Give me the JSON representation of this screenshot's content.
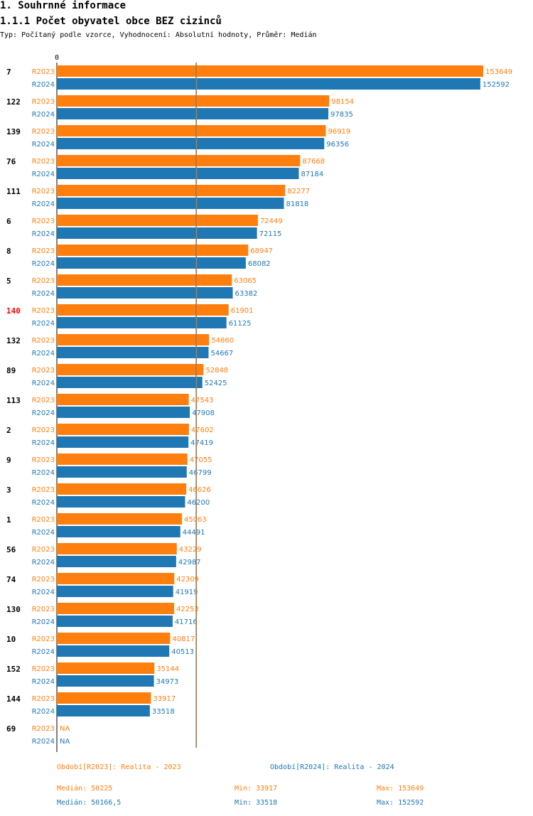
{
  "header": {
    "section_title": "1. Souhrnné informace",
    "chart_title": "1.1.1 Počet obyvatel obce BEZ cizinců",
    "subtitle": "Typ: Počítaný podle vzorce, Vyhodnocení: Absolutní hodnoty, Průměr: Medián"
  },
  "colors": {
    "R2023": "#ff7f0e",
    "R2024": "#1f77b4",
    "highlight": "#ff0000",
    "median_line": "#5a7a7a"
  },
  "chart_data": {
    "type": "bar",
    "orientation": "horizontal",
    "axis_zero_label": "0",
    "x_min": 0,
    "x_max": 153649,
    "categories": [
      "7",
      "122",
      "139",
      "76",
      "111",
      "6",
      "8",
      "5",
      "140",
      "132",
      "89",
      "113",
      "2",
      "9",
      "3",
      "1",
      "56",
      "74",
      "130",
      "10",
      "152",
      "144",
      "69"
    ],
    "highlighted_category": "140",
    "series": [
      {
        "name": "R2023",
        "values": [
          153649,
          98154,
          96919,
          87668,
          82277,
          72449,
          68947,
          63065,
          61901,
          54860,
          52848,
          47543,
          47602,
          47055,
          46626,
          45063,
          43229,
          42309,
          42253,
          40817,
          35144,
          33917,
          null
        ]
      },
      {
        "name": "R2024",
        "values": [
          152592,
          97835,
          96356,
          87184,
          81818,
          72115,
          68082,
          63382,
          61125,
          54667,
          52425,
          47908,
          47419,
          46799,
          46200,
          44491,
          42987,
          41919,
          41716,
          40513,
          34973,
          33518,
          null
        ]
      }
    ],
    "missing_label": "NA",
    "median": {
      "R2023": 50225,
      "R2024": 50166.5
    }
  },
  "footer": {
    "legend_2023": "Období[R2023]: Realita - 2023",
    "legend_2024": "Období[R2024]: Realita - 2024",
    "median_2023": "Medián: 50225",
    "median_2024": "Medián: 50166,5",
    "min_2023": "Min: 33917",
    "min_2024": "Min: 33518",
    "max_2023": "Max: 153649",
    "max_2024": "Max: 152592"
  }
}
